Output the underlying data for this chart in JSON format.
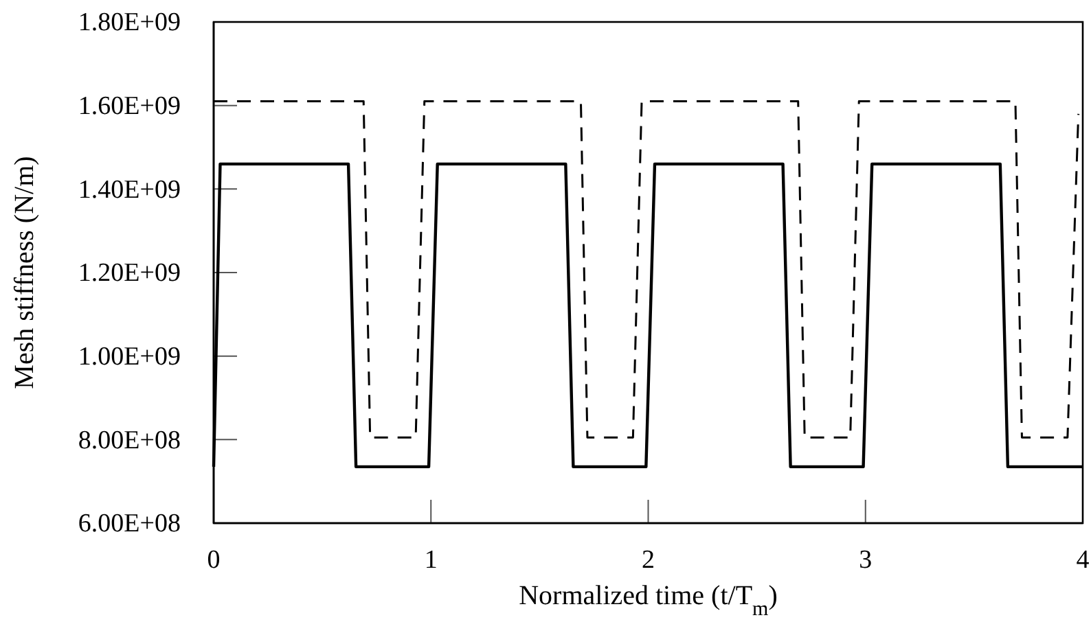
{
  "chart_data": {
    "type": "line",
    "xlabel": "Normalized time (t/T$_{m}$)",
    "ylabel": "Mesh stiffness (N/m)",
    "xlim": [
      0,
      4
    ],
    "xticks": [
      0,
      1,
      2,
      3,
      4
    ],
    "ylim": [
      600000000,
      1800000000
    ],
    "yticks": [
      {
        "value": 600000000,
        "label": "6.00E+08"
      },
      {
        "value": 800000000,
        "label": "8.00E+08"
      },
      {
        "value": 1000000000,
        "label": "1.00E+09"
      },
      {
        "value": 1200000000,
        "label": "1.20E+09"
      },
      {
        "value": 1400000000,
        "label": "1.40E+09"
      },
      {
        "value": 1600000000,
        "label": "1.60E+09"
      },
      {
        "value": 1800000000,
        "label": "1.80E+09"
      }
    ],
    "grid": false,
    "marker": "none",
    "series": [
      {
        "color": "#000000",
        "line_style": "solid",
        "x": [
          0,
          0.03,
          0.62,
          0.655,
          0.99,
          1.03,
          1.62,
          1.655,
          1.99,
          2.03,
          2.62,
          2.655,
          2.99,
          3.03,
          3.62,
          3.655,
          4
        ],
        "values": [
          735000000,
          1460000000,
          1460000000,
          735000000,
          735000000,
          1460000000,
          1460000000,
          735000000,
          735000000,
          1460000000,
          1460000000,
          735000000,
          735000000,
          1460000000,
          1460000000,
          735000000,
          735000000
        ]
      },
      {
        "color": "#000000",
        "line_style": "dashed",
        "x": [
          0,
          0.69,
          0.72,
          0.93,
          0.97,
          1.69,
          1.72,
          1.93,
          1.97,
          2.69,
          2.72,
          2.93,
          2.97,
          3.69,
          3.72,
          3.93,
          3.98
        ],
        "values": [
          1610000000,
          1610000000,
          805000000,
          805000000,
          1610000000,
          1610000000,
          805000000,
          805000000,
          1610000000,
          1610000000,
          805000000,
          805000000,
          1610000000,
          1610000000,
          805000000,
          805000000,
          1580000000
        ]
      }
    ]
  }
}
